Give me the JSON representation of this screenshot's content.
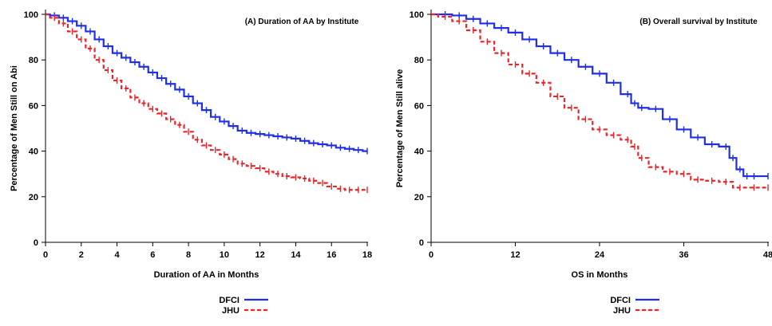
{
  "chart_data": [
    {
      "type": "line",
      "title": "(A) Duration of AA by Institute",
      "xlabel": "Duration of AA in Months",
      "ylabel": "Percentage of Men Still on Abi",
      "xlim": [
        0,
        18
      ],
      "ylim": [
        0,
        100
      ],
      "xticks": [
        "0",
        "2",
        "4",
        "6",
        "8",
        "10",
        "12",
        "14",
        "16",
        "18"
      ],
      "yticks": [
        "0",
        "20",
        "40",
        "60",
        "80",
        "100"
      ],
      "grid": false,
      "legend": "bottom-center",
      "series": [
        {
          "name": "DFCI",
          "color": "#1f2ee8",
          "dash": "solid",
          "x": [
            0,
            0.5,
            1,
            1.5,
            2,
            2.5,
            3,
            3.5,
            4,
            4.5,
            5,
            5.5,
            6,
            6.5,
            7,
            7.5,
            8,
            8.5,
            9,
            9.5,
            10,
            10.5,
            11,
            11.5,
            12,
            12.5,
            13,
            13.5,
            14,
            14.5,
            15,
            15.5,
            16,
            16.5,
            17,
            17.5,
            18
          ],
          "y": [
            100,
            99.5,
            98.5,
            97,
            95,
            92.5,
            89,
            86,
            83,
            81,
            79,
            77,
            74.5,
            72,
            69.5,
            67,
            64,
            61,
            58,
            55,
            53,
            51,
            49,
            48,
            47.5,
            47,
            46.5,
            46,
            45.5,
            44.5,
            43.5,
            43,
            42.5,
            41.5,
            41,
            40.5,
            40
          ]
        },
        {
          "name": "JHU",
          "color": "#e8262a",
          "dash": "dashed",
          "x": [
            0,
            0.5,
            1,
            1.5,
            2,
            2.5,
            3,
            3.5,
            4,
            4.5,
            5,
            5.5,
            6,
            6.5,
            7,
            7.5,
            8,
            8.5,
            9,
            9.5,
            10,
            10.5,
            11,
            11.5,
            12,
            12.5,
            13,
            13.5,
            14,
            14.5,
            15,
            15.5,
            16,
            16.5,
            17,
            17.5,
            18
          ],
          "y": [
            100,
            98.5,
            96,
            92.5,
            89,
            85,
            80,
            75.5,
            71,
            67.5,
            63.5,
            61,
            58.5,
            56.5,
            54,
            51.5,
            48.5,
            45,
            42.5,
            40.5,
            38.5,
            36.5,
            34.5,
            33.5,
            32.5,
            31,
            30,
            29,
            28.5,
            28,
            27,
            26,
            24.5,
            23.5,
            23,
            23,
            23
          ]
        }
      ]
    },
    {
      "type": "line",
      "title": "(B) Overall survival by Institute",
      "xlabel": "OS in Months",
      "ylabel": "Percentage of Men Still alive",
      "xlim": [
        0,
        48
      ],
      "ylim": [
        0,
        100
      ],
      "xticks": [
        "0",
        "12",
        "24",
        "36",
        "48"
      ],
      "yticks": [
        "0",
        "20",
        "40",
        "60",
        "80",
        "100"
      ],
      "grid": false,
      "legend": "bottom-center",
      "series": [
        {
          "name": "DFCI",
          "color": "#1f2ee8",
          "dash": "solid",
          "x": [
            0,
            2,
            4,
            6,
            8,
            10,
            12,
            14,
            16,
            18,
            20,
            22,
            24,
            26,
            28,
            29,
            30,
            32,
            34,
            36,
            38,
            40,
            42,
            43,
            44,
            45,
            46,
            48
          ],
          "y": [
            100,
            100,
            99.5,
            98,
            96,
            94,
            92,
            89,
            86,
            83,
            80,
            77,
            74,
            70,
            65,
            61,
            59,
            58.5,
            54,
            49.5,
            46,
            43,
            42,
            37,
            32,
            29,
            29,
            29
          ]
        },
        {
          "name": "JHU",
          "color": "#e8262a",
          "dash": "dashed",
          "x": [
            0,
            2,
            4,
            6,
            8,
            10,
            12,
            14,
            16,
            18,
            20,
            22,
            24,
            26,
            28,
            29,
            30,
            32,
            34,
            36,
            38,
            40,
            42,
            44,
            46,
            48
          ],
          "y": [
            100,
            99,
            97,
            93,
            88,
            83,
            78,
            74,
            70,
            64,
            59,
            54,
            49.5,
            47,
            45,
            42,
            37,
            33,
            31,
            30,
            27.5,
            27,
            26.5,
            24,
            24,
            24
          ]
        }
      ]
    }
  ]
}
